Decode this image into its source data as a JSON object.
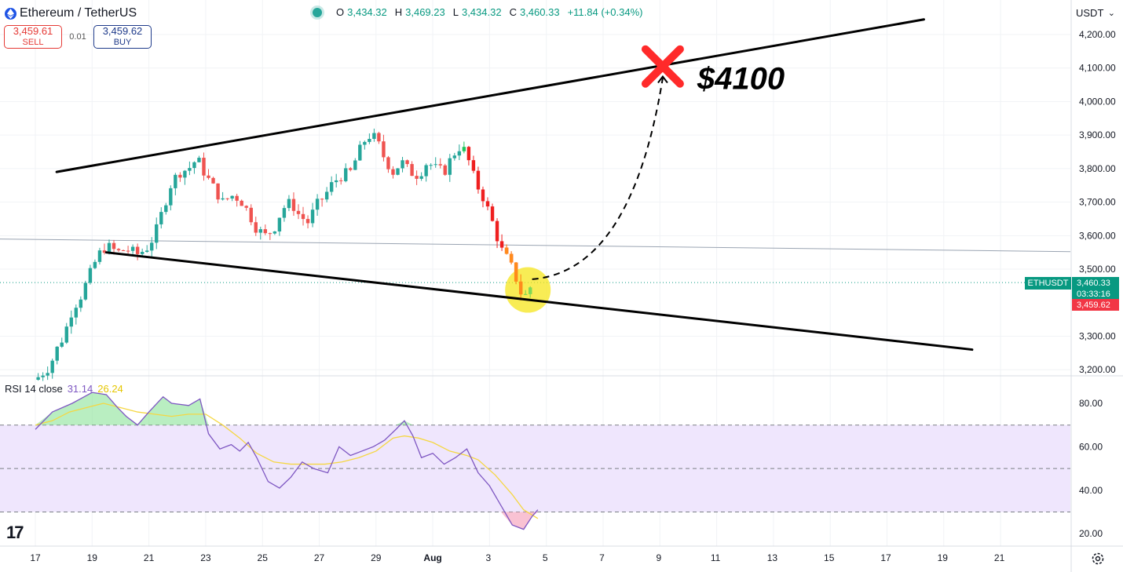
{
  "header": {
    "symbol": "Ethereum / TetherUS",
    "ohlc": {
      "o_label": "O",
      "o": "3,434.32",
      "h_label": "H",
      "h": "3,469.23",
      "l_label": "L",
      "l": "3,434.32",
      "c_label": "C",
      "c": "3,460.33",
      "change": "+11.84 (+0.34%)"
    }
  },
  "trade": {
    "sell_price": "3,459.61",
    "sell_label": "SELL",
    "spread": "0.01",
    "buy_price": "3,459.62",
    "buy_label": "BUY"
  },
  "currency": {
    "label": "USDT",
    "chevron": "⌄"
  },
  "price_axis": {
    "ticks": [
      "4,200.00",
      "4,100.00",
      "4,000.00",
      "3,900.00",
      "3,800.00",
      "3,700.00",
      "3,600.00",
      "3,500.00",
      "3,300.00",
      "3,200.00"
    ],
    "symbol_tag": "ETHUSDT",
    "last_price": "3,460.33",
    "countdown": "03:33:16",
    "bid_price": "3,459.62"
  },
  "rsi": {
    "label": "RSI 14 close",
    "value": "31.14",
    "ma_value": "26.24",
    "ticks": [
      "80.00",
      "60.00",
      "40.00",
      "20.00"
    ]
  },
  "time_axis": {
    "labels": [
      "17",
      "19",
      "21",
      "23",
      "25",
      "27",
      "29",
      "Aug",
      "3",
      "5",
      "7",
      "9",
      "11",
      "13",
      "15",
      "17",
      "19",
      "21"
    ]
  },
  "annotation": {
    "target_text": "$4100"
  },
  "branding": {
    "logo": "17"
  },
  "colors": {
    "up": "#26a69a",
    "down": "#ef5350",
    "bright_up": "#22c55e",
    "bright_down": "#ef1f1f",
    "rsi_line": "#7e57c2",
    "rsi_ma": "#f5d742",
    "band": "#efe6fd",
    "highlight": "#f5e61c",
    "cross": "#ff2a2a"
  },
  "icons": {
    "settings": "gear-icon",
    "asset": "ethereum-icon"
  },
  "chart_data": {
    "type": "candlestick",
    "title": "Ethereum / TetherUS",
    "ylim": [
      3180,
      4250
    ],
    "y_ticks": [
      3200,
      3300,
      3500,
      3600,
      3700,
      3800,
      3900,
      4000,
      4100,
      4200
    ],
    "x_labels": [
      "17",
      "19",
      "21",
      "23",
      "25",
      "27",
      "29",
      "Aug",
      "3",
      "5",
      "7",
      "9",
      "11",
      "13",
      "15",
      "17",
      "19",
      "21"
    ],
    "close_path": [
      [
        0,
        3170
      ],
      [
        0.5,
        3210
      ],
      [
        0.8,
        3270
      ],
      [
        1.0,
        3300
      ],
      [
        1.3,
        3380
      ],
      [
        1.6,
        3420
      ],
      [
        1.9,
        3480
      ],
      [
        2.2,
        3540
      ],
      [
        2.5,
        3570
      ],
      [
        2.9,
        3550
      ],
      [
        3.2,
        3560
      ],
      [
        3.6,
        3545
      ],
      [
        3.9,
        3560
      ],
      [
        4.2,
        3600
      ],
      [
        4.5,
        3680
      ],
      [
        4.8,
        3760
      ],
      [
        5.1,
        3790
      ],
      [
        5.4,
        3800
      ],
      [
        5.7,
        3830
      ],
      [
        6.0,
        3780
      ],
      [
        6.3,
        3740
      ],
      [
        6.6,
        3700
      ],
      [
        6.9,
        3720
      ],
      [
        7.2,
        3710
      ],
      [
        7.5,
        3670
      ],
      [
        7.8,
        3620
      ],
      [
        8.1,
        3600
      ],
      [
        8.4,
        3620
      ],
      [
        8.7,
        3680
      ],
      [
        9.0,
        3700
      ],
      [
        9.3,
        3660
      ],
      [
        9.6,
        3640
      ],
      [
        9.9,
        3690
      ],
      [
        10.2,
        3720
      ],
      [
        10.5,
        3760
      ],
      [
        10.8,
        3780
      ],
      [
        11.1,
        3790
      ],
      [
        11.4,
        3850
      ],
      [
        11.7,
        3900
      ],
      [
        12.0,
        3890
      ],
      [
        12.3,
        3830
      ],
      [
        12.6,
        3790
      ],
      [
        12.9,
        3820
      ],
      [
        13.2,
        3790
      ],
      [
        13.5,
        3780
      ],
      [
        13.8,
        3820
      ],
      [
        14.1,
        3800
      ],
      [
        14.4,
        3790
      ],
      [
        14.7,
        3840
      ],
      [
        15.0,
        3870
      ],
      [
        15.2,
        3840
      ],
      [
        15.5,
        3760
      ],
      [
        15.8,
        3710
      ],
      [
        16.1,
        3640
      ],
      [
        16.4,
        3560
      ],
      [
        16.7,
        3520
      ],
      [
        16.9,
        3480
      ],
      [
        17.1,
        3430
      ],
      [
        17.3,
        3420
      ],
      [
        17.5,
        3460
      ]
    ],
    "trend_lines": [
      {
        "name": "upper",
        "from": [
          0.75,
          3790
        ],
        "to": [
          31.3,
          4245
        ]
      },
      {
        "name": "lower",
        "from": [
          2.5,
          3550
        ],
        "to": [
          33.0,
          3260
        ]
      }
    ],
    "horizontal_line": 3460,
    "projection": {
      "from": [
        17.5,
        3470
      ],
      "to": [
        22.1,
        4070
      ],
      "style": "dashed"
    },
    "target": {
      "value": 4100,
      "label": "$4100",
      "x": 22.1
    }
  },
  "rsi_data": {
    "ylim": [
      15,
      90
    ],
    "bands": [
      70,
      50,
      30
    ],
    "rsi": [
      [
        0,
        68
      ],
      [
        0.6,
        76
      ],
      [
        1.3,
        80
      ],
      [
        2.0,
        85
      ],
      [
        2.5,
        84
      ],
      [
        2.9,
        78
      ],
      [
        3.2,
        74
      ],
      [
        3.6,
        70
      ],
      [
        4.0,
        76
      ],
      [
        4.5,
        83
      ],
      [
        4.8,
        80
      ],
      [
        5.4,
        79
      ],
      [
        5.8,
        82
      ],
      [
        6.1,
        66
      ],
      [
        6.5,
        59
      ],
      [
        6.9,
        61
      ],
      [
        7.2,
        58
      ],
      [
        7.5,
        62
      ],
      [
        7.8,
        55
      ],
      [
        8.2,
        44
      ],
      [
        8.6,
        41
      ],
      [
        9.0,
        46
      ],
      [
        9.4,
        53
      ],
      [
        9.8,
        50
      ],
      [
        10.3,
        48
      ],
      [
        10.7,
        60
      ],
      [
        11.1,
        56
      ],
      [
        11.5,
        58
      ],
      [
        11.9,
        60
      ],
      [
        12.3,
        63
      ],
      [
        12.7,
        68
      ],
      [
        13.0,
        72
      ],
      [
        13.3,
        65
      ],
      [
        13.6,
        55
      ],
      [
        14.0,
        57
      ],
      [
        14.4,
        52
      ],
      [
        14.8,
        55
      ],
      [
        15.2,
        59
      ],
      [
        15.6,
        48
      ],
      [
        16.0,
        42
      ],
      [
        16.4,
        33
      ],
      [
        16.8,
        24
      ],
      [
        17.2,
        22
      ],
      [
        17.5,
        28
      ],
      [
        17.7,
        31
      ]
    ],
    "ma": [
      [
        0,
        70
      ],
      [
        0.6,
        72
      ],
      [
        1.2,
        76
      ],
      [
        1.8,
        78
      ],
      [
        2.4,
        80
      ],
      [
        3.0,
        78
      ],
      [
        3.6,
        76
      ],
      [
        4.2,
        75
      ],
      [
        4.8,
        74
      ],
      [
        5.4,
        75
      ],
      [
        6.0,
        75
      ],
      [
        6.6,
        70
      ],
      [
        7.2,
        64
      ],
      [
        7.8,
        57
      ],
      [
        8.4,
        53
      ],
      [
        9.0,
        52
      ],
      [
        9.6,
        52
      ],
      [
        10.2,
        52
      ],
      [
        10.8,
        53
      ],
      [
        11.4,
        55
      ],
      [
        12.0,
        58
      ],
      [
        12.6,
        64
      ],
      [
        13.0,
        65
      ],
      [
        13.5,
        64
      ],
      [
        14.0,
        62
      ],
      [
        14.6,
        58
      ],
      [
        15.2,
        56
      ],
      [
        15.6,
        54
      ],
      [
        16.2,
        47
      ],
      [
        16.8,
        38
      ],
      [
        17.2,
        31
      ],
      [
        17.7,
        27
      ]
    ]
  }
}
